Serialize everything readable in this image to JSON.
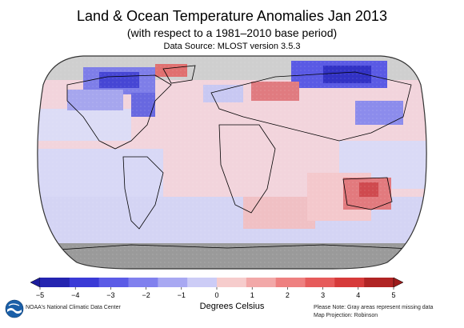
{
  "header": {
    "title": "Land & Ocean Temperature Anomalies Jan 2013",
    "subtitle": "(with respect to a 1981–2010 base period)",
    "source": "Data Source: MLOST version 3.5.3"
  },
  "map": {
    "projection_label": "Map Projection: Robinson",
    "missing_color": "#aaaaaa",
    "land_outline_color": "#000000",
    "anomaly_regions": [
      {
        "name": "Arctic Canada / Greenland region",
        "anomaly_c": -3
      },
      {
        "name": "Northern Eurasia / Siberia",
        "anomaly_c": -4
      },
      {
        "name": "Western Russia",
        "anomaly_c": 2
      },
      {
        "name": "Australia",
        "anomaly_c": 3
      },
      {
        "name": "Alaska",
        "anomaly_c": 1
      },
      {
        "name": "Tropical Pacific",
        "anomaly_c": -0.5
      },
      {
        "name": "Southern Ocean",
        "anomaly_c": -0.5
      },
      {
        "name": "Antarctica",
        "anomaly_c": null
      }
    ]
  },
  "legend": {
    "ticks": [
      "−5",
      "−4",
      "−3",
      "−2",
      "−1",
      "0",
      "1",
      "2",
      "3",
      "4",
      "5"
    ],
    "unit_label": "Degrees Celsius",
    "colors": [
      "#2424b0",
      "#3a3ad6",
      "#5b5be6",
      "#8080ee",
      "#a8a8f2",
      "#ccccf6",
      "#f6cccc",
      "#f2a8a8",
      "#ee8080",
      "#e65b5b",
      "#d63a3a",
      "#b02424"
    ]
  },
  "footer": {
    "org": "NOAA's National Climatic Data Center",
    "note": "Please Note: Gray areas represent missing data",
    "projection": "Map Projection: Robinson"
  }
}
